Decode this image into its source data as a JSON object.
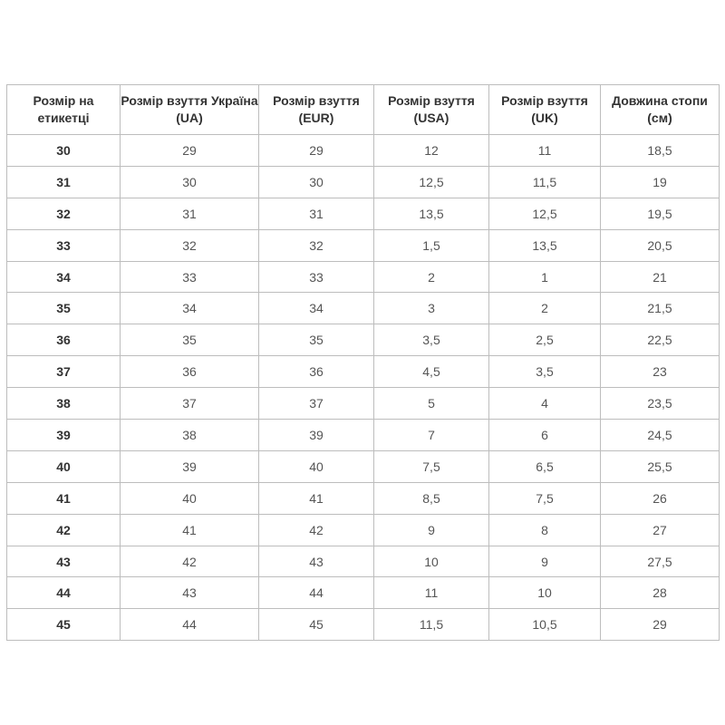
{
  "headers": [
    "Розмір на етикетці",
    "Розмір взуття Україна (UA)",
    "Розмір взуття (EUR)",
    "Розмір взуття (USA)",
    "Розмір взуття (UK)",
    "Довжина стопи (см)"
  ],
  "rows": [
    [
      "30",
      "29",
      "29",
      "12",
      "11",
      "18,5"
    ],
    [
      "31",
      "30",
      "30",
      "12,5",
      "11,5",
      "19"
    ],
    [
      "32",
      "31",
      "31",
      "13,5",
      "12,5",
      "19,5"
    ],
    [
      "33",
      "32",
      "32",
      "1,5",
      "13,5",
      "20,5"
    ],
    [
      "34",
      "33",
      "33",
      "2",
      "1",
      "21"
    ],
    [
      "35",
      "34",
      "34",
      "3",
      "2",
      "21,5"
    ],
    [
      "36",
      "35",
      "35",
      "3,5",
      "2,5",
      "22,5"
    ],
    [
      "37",
      "36",
      "36",
      "4,5",
      "3,5",
      "23"
    ],
    [
      "38",
      "37",
      "37",
      "5",
      "4",
      "23,5"
    ],
    [
      "39",
      "38",
      "39",
      "7",
      "6",
      "24,5"
    ],
    [
      "40",
      "39",
      "40",
      "7,5",
      "6,5",
      "25,5"
    ],
    [
      "41",
      "40",
      "41",
      "8,5",
      "7,5",
      "26"
    ],
    [
      "42",
      "41",
      "42",
      "9",
      "8",
      "27"
    ],
    [
      "43",
      "42",
      "43",
      "10",
      "9",
      "27,5"
    ],
    [
      "44",
      "43",
      "44",
      "11",
      "10",
      "28"
    ],
    [
      "45",
      "44",
      "45",
      "11,5",
      "10,5",
      "29"
    ]
  ]
}
